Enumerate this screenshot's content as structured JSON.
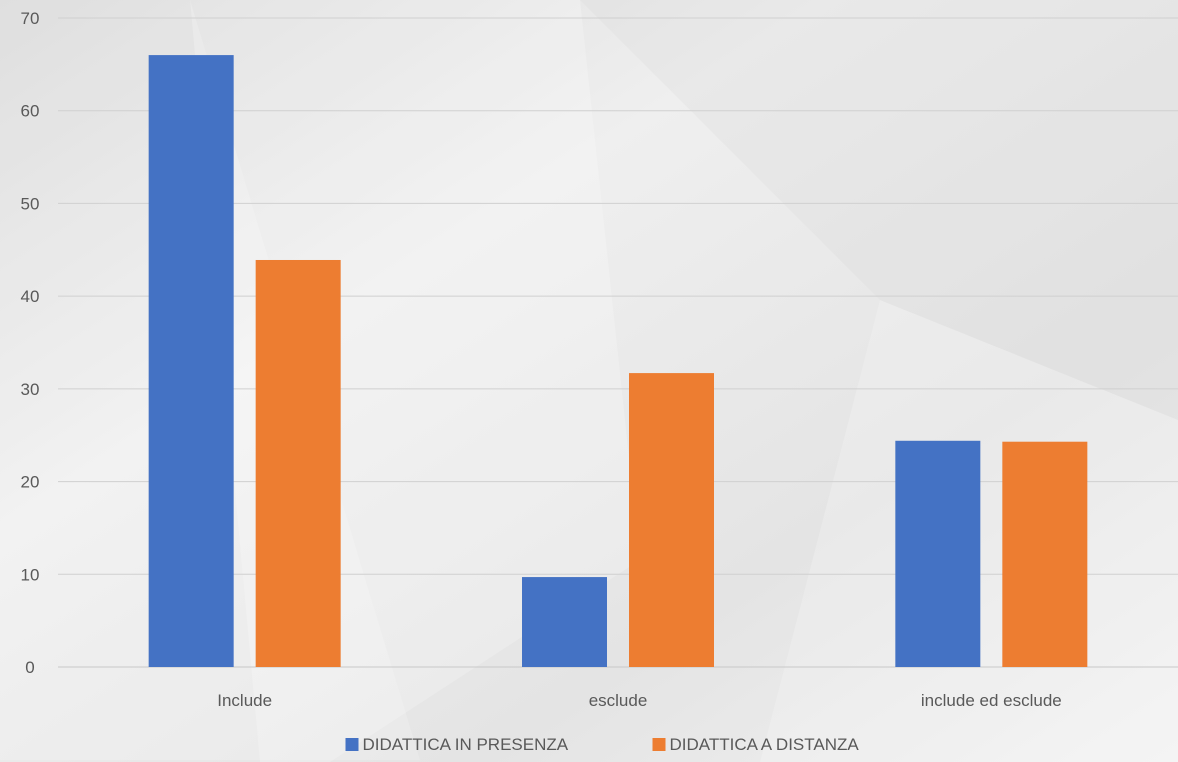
{
  "chart_data": {
    "type": "bar",
    "title": "",
    "xlabel": "",
    "ylabel": "",
    "categories": [
      "Include",
      "esclude",
      "include ed esclude"
    ],
    "series": [
      {
        "name": "DIDATTICA IN PRESENZA",
        "color": "#4472c4",
        "values": [
          66,
          9.7,
          24.4
        ]
      },
      {
        "name": "DIDATTICA A DISTANZA",
        "color": "#ed7d31",
        "values": [
          43.9,
          31.7,
          24.3
        ]
      }
    ],
    "ylim": [
      0,
      70
    ],
    "yticks": [
      0,
      10,
      20,
      30,
      40,
      50,
      60,
      70
    ],
    "grid": true,
    "legend_position": "bottom"
  }
}
